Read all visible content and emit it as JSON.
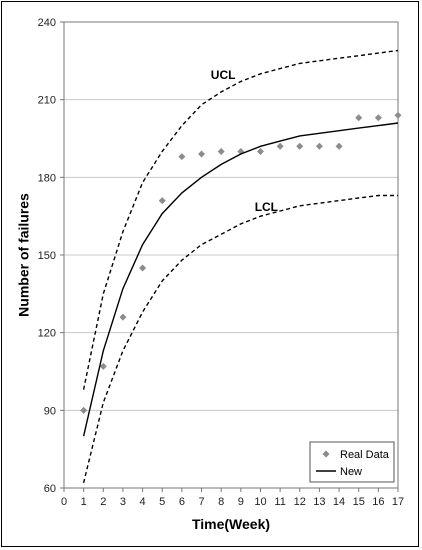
{
  "chart_data": {
    "type": "line",
    "title": "",
    "xlabel": "Time(Week)",
    "ylabel": "Number of failures",
    "xlim": [
      0,
      17
    ],
    "ylim": [
      60,
      240
    ],
    "x_ticks": [
      0,
      1,
      2,
      3,
      4,
      5,
      6,
      7,
      8,
      9,
      10,
      11,
      12,
      13,
      14,
      15,
      16,
      17
    ],
    "y_ticks": [
      60,
      90,
      120,
      150,
      180,
      210,
      240
    ],
    "grid": "horizontal",
    "legend_position": "bottom-right",
    "series": [
      {
        "name": "Real Data",
        "style": "markers",
        "marker": "diamond",
        "color": "#8c8c8c",
        "x": [
          1,
          2,
          3,
          4,
          5,
          6,
          7,
          8,
          9,
          10,
          11,
          12,
          13,
          14,
          15,
          16,
          17
        ],
        "values": [
          90,
          107,
          126,
          145,
          171,
          188,
          189,
          190,
          190,
          190,
          192,
          192,
          192,
          192,
          203,
          203,
          204
        ]
      },
      {
        "name": "New",
        "style": "solid",
        "color": "#000000",
        "x": [
          1,
          2,
          3,
          4,
          5,
          6,
          7,
          8,
          9,
          10,
          11,
          12,
          13,
          14,
          15,
          16,
          17
        ],
        "values": [
          80,
          113,
          137,
          154,
          166,
          174,
          180,
          185,
          189,
          192,
          194,
          196,
          197,
          198,
          199,
          200,
          201
        ]
      },
      {
        "style": "dashed",
        "color": "#000000",
        "x": [
          1,
          2,
          3,
          4,
          5,
          6,
          7,
          8,
          9,
          10,
          11,
          12,
          13,
          14,
          15,
          16,
          17
        ],
        "values": [
          98,
          135,
          159,
          178,
          190,
          200,
          208,
          213,
          217,
          220,
          222,
          224,
          225,
          226,
          227,
          228,
          229
        ]
      },
      {
        "style": "dashed",
        "color": "#000000",
        "x": [
          1,
          2,
          3,
          4,
          5,
          6,
          7,
          8,
          9,
          10,
          11,
          12,
          13,
          14,
          15,
          16,
          17
        ],
        "values": [
          62,
          93,
          113,
          128,
          140,
          148,
          154,
          158,
          162,
          165,
          167,
          169,
          170,
          171,
          172,
          173,
          173
        ]
      }
    ],
    "annotations": [
      {
        "text": "UCL",
        "x": 8.1,
        "y": 218
      },
      {
        "text": "LCL",
        "x": 10.3,
        "y": 167
      }
    ]
  }
}
